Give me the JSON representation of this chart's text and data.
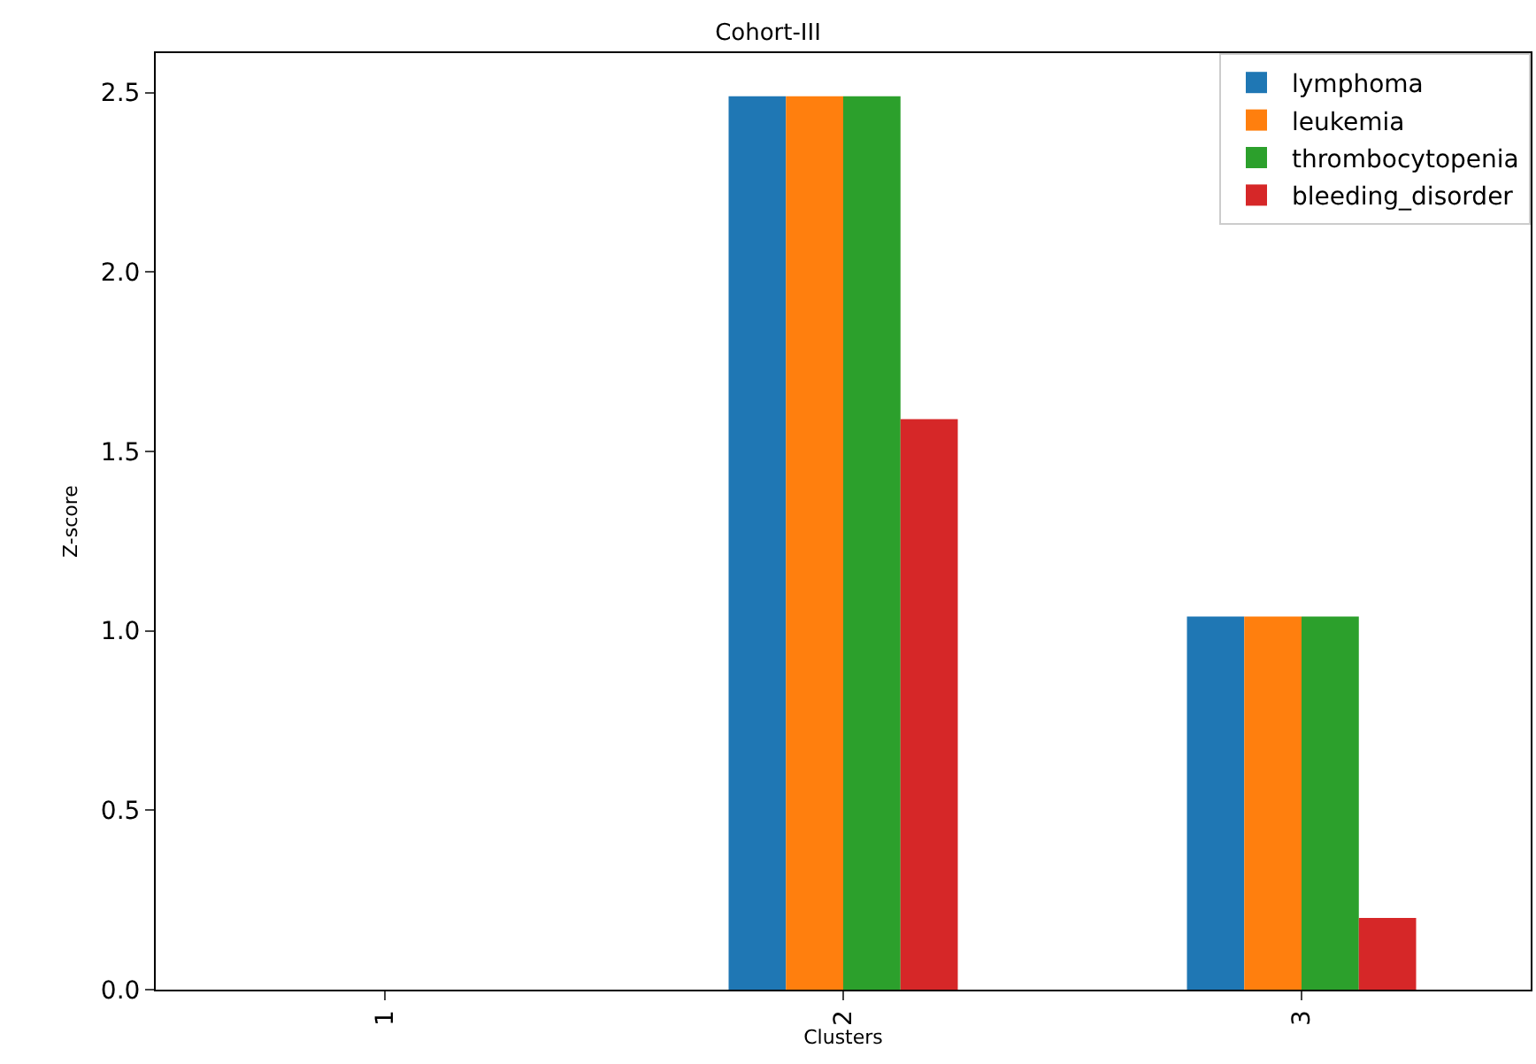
{
  "chart_data": {
    "type": "bar",
    "title": "Cohort-III",
    "xlabel": "Clusters",
    "ylabel": "Z-score",
    "categories": [
      "1",
      "2",
      "3"
    ],
    "series": [
      {
        "name": "lymphoma",
        "color": "#1f77b4",
        "values": [
          0,
          2.49,
          1.04
        ]
      },
      {
        "name": "leukemia",
        "color": "#ff7f0e",
        "values": [
          0,
          2.49,
          1.04
        ]
      },
      {
        "name": "thrombocytopenia",
        "color": "#2ca02c",
        "values": [
          0,
          2.49,
          1.04
        ]
      },
      {
        "name": "bleeding_disorder",
        "color": "#d62728",
        "values": [
          0,
          1.59,
          0.2
        ]
      }
    ],
    "ylim": [
      0,
      2.61
    ],
    "yticks": [
      {
        "value": 0,
        "label": "0.0"
      },
      {
        "value": 0.5,
        "label": "0.5"
      },
      {
        "value": 1,
        "label": "1.0"
      },
      {
        "value": 1.5,
        "label": "1.5"
      },
      {
        "value": 2,
        "label": "2.0"
      },
      {
        "value": 2.5,
        "label": "2.5"
      }
    ],
    "legend": "top right"
  }
}
